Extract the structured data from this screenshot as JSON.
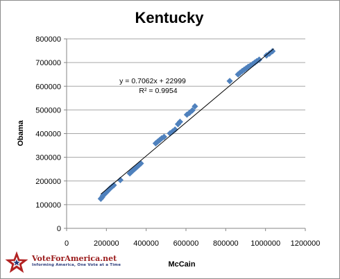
{
  "chart_data": {
    "type": "scatter",
    "title": "Kentucky",
    "xlabel": "McCain",
    "ylabel": "Obama",
    "xlim": [
      0,
      1200000
    ],
    "ylim": [
      0,
      800000
    ],
    "x_ticks": [
      "0",
      "200000",
      "400000",
      "600000",
      "800000",
      "1000000",
      "1200000"
    ],
    "y_ticks": [
      "0",
      "100000",
      "200000",
      "300000",
      "400000",
      "500000",
      "600000",
      "700000",
      "800000"
    ],
    "grid": "horizontal",
    "legend": "none",
    "trendline": {
      "slope": 0.7062,
      "intercept": 22999,
      "equation": "y = 0.7062x + 22999",
      "r_squared": "R² = 0.9954"
    },
    "series": [
      {
        "x": [
          172000,
          178000,
          183000,
          190000,
          197000,
          204000,
          212000,
          220000,
          228000,
          237000,
          270000,
          318000,
          325000,
          333000,
          341000,
          349000,
          357000,
          365000,
          373000,
          448000,
          458000,
          468000,
          478000,
          490000,
          520000,
          533000,
          545000,
          560000,
          570000,
          605000,
          618000,
          632000,
          645000,
          820000,
          862000,
          872000,
          883000,
          893000,
          903000,
          913000,
          925000,
          936000,
          946000,
          956000,
          968000,
          1005000,
          1020000,
          1035000
        ],
        "y": [
          125000,
          131000,
          138000,
          144000,
          150000,
          156000,
          163000,
          170000,
          176000,
          182000,
          204000,
          232000,
          238000,
          244000,
          250000,
          256000,
          262000,
          268000,
          274000,
          359000,
          366000,
          373000,
          380000,
          386000,
          401000,
          409000,
          417000,
          440000,
          450000,
          480000,
          488000,
          498000,
          515000,
          622000,
          650000,
          657000,
          664000,
          670000,
          676000,
          682000,
          688000,
          694000,
          700000,
          706000,
          712000,
          730000,
          738000,
          748000
        ]
      }
    ],
    "colors": {
      "marker": "#4f81bd",
      "grid": "#a6a6a6",
      "trendline": "#000000"
    }
  },
  "logo": {
    "name": "VoteForAmerica.net",
    "tagline": "Informing America, One Vote at a Time"
  }
}
